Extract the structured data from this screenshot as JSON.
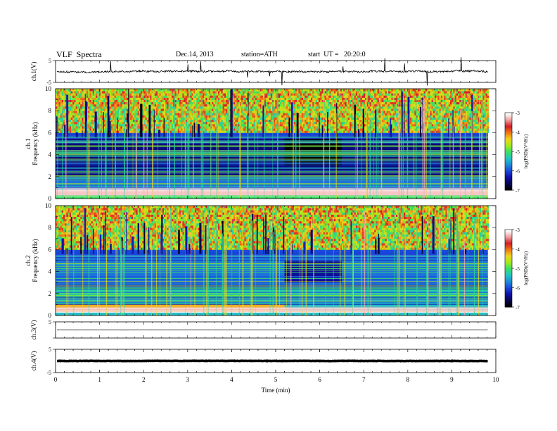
{
  "header": {
    "title": "VLF  Spectra",
    "date": "Dec.14, 2013",
    "station": "station=ATH",
    "start": "start  UT =   20:20:0"
  },
  "colors": {
    "colormap": [
      "#000000",
      "#06064f",
      "#1010a8",
      "#1a4adc",
      "#1d8ed8",
      "#22c8c0",
      "#3ae060",
      "#a6ea18",
      "#f0d41c",
      "#f07414",
      "#d21e28",
      "#f0a0a0",
      "#ffffff"
    ],
    "trace": "#000000",
    "axis": "#000000"
  },
  "chart_data": [
    {
      "type": "line",
      "name": "ch1-waveform",
      "ylabel": "ch.1(V)",
      "ylim": [
        -5,
        5
      ],
      "yticks": [
        "5",
        "-5"
      ],
      "xlim": [
        0,
        10
      ],
      "approx_level": 0.0,
      "approx_noise": 1.0,
      "trace_end": 9.82
    },
    {
      "type": "heatmap",
      "name": "ch1-spectrogram",
      "ylabel": "ch.1",
      "ylabel2": "Frequency  (kHz)",
      "yticks": [
        "10",
        "8",
        "6",
        "4",
        "2",
        "0"
      ],
      "ylim": [
        0,
        10
      ],
      "xlim": [
        0,
        10
      ],
      "data_end": 9.82,
      "colorbar_label": "log(PSD)(V²/Hz)",
      "colorbar_ticks": [
        "-3",
        "-4",
        "-5",
        "-6",
        "-7"
      ],
      "clim": [
        -7,
        -3
      ],
      "bands_khz_logpsd": [
        [
          0,
          0.3,
          -5.0
        ],
        [
          0.3,
          0.8,
          -3.2
        ],
        [
          0.8,
          2.0,
          -5.8
        ],
        [
          2.0,
          5.5,
          -6.5
        ],
        [
          5.5,
          6.0,
          -6.0
        ],
        [
          6.0,
          10.0,
          -4.6
        ]
      ],
      "feature": "lower noise floor from 5.2 to 6.5 min between 3 and 5.5 kHz"
    },
    {
      "type": "heatmap",
      "name": "ch2-spectrogram",
      "ylabel": "ch.2",
      "ylabel2": "Frequency  (kHz)",
      "yticks": [
        "10",
        "8",
        "6",
        "4",
        "2",
        "0"
      ],
      "ylim": [
        0,
        10
      ],
      "xlim": [
        0,
        10
      ],
      "data_end": 9.82,
      "colorbar_label": "log(PSD)(V²/Hz)",
      "colorbar_ticks": [
        "-3",
        "-4",
        "-5",
        "-6",
        "-7"
      ],
      "clim": [
        -7,
        -3
      ],
      "bands_khz_logpsd": [
        [
          0,
          0.3,
          -5.4
        ],
        [
          0.3,
          1.0,
          -4.2
        ],
        [
          1.0,
          2.5,
          -5.2
        ],
        [
          2.5,
          5.5,
          -5.8
        ],
        [
          5.5,
          6.0,
          -6.0
        ],
        [
          6.0,
          10.0,
          -4.7
        ]
      ],
      "feature": "step change near 5.2 min"
    },
    {
      "type": "line",
      "name": "ch3-waveform",
      "ylabel": "ch.3(V)",
      "ylim": [
        -5,
        5
      ],
      "yticks": [
        "5"
      ],
      "xlim": [
        0,
        10
      ],
      "approx_level": 0.0,
      "approx_noise": 0.1,
      "trace_end": 9.82
    },
    {
      "type": "line",
      "name": "ch4-waveform",
      "ylabel": "ch.4(V)",
      "ylim": [
        -5,
        5
      ],
      "yticks": [
        "5",
        "-5"
      ],
      "xlim": [
        0,
        10
      ],
      "approx_level": 0.0,
      "approx_noise": 0.15,
      "trace_end": 9.82
    }
  ],
  "xaxis": {
    "label": "Time  (min)",
    "ticks": [
      "0",
      "1",
      "2",
      "3",
      "4",
      "5",
      "6",
      "7",
      "8",
      "9",
      "10"
    ],
    "xlim": [
      0,
      10
    ]
  }
}
